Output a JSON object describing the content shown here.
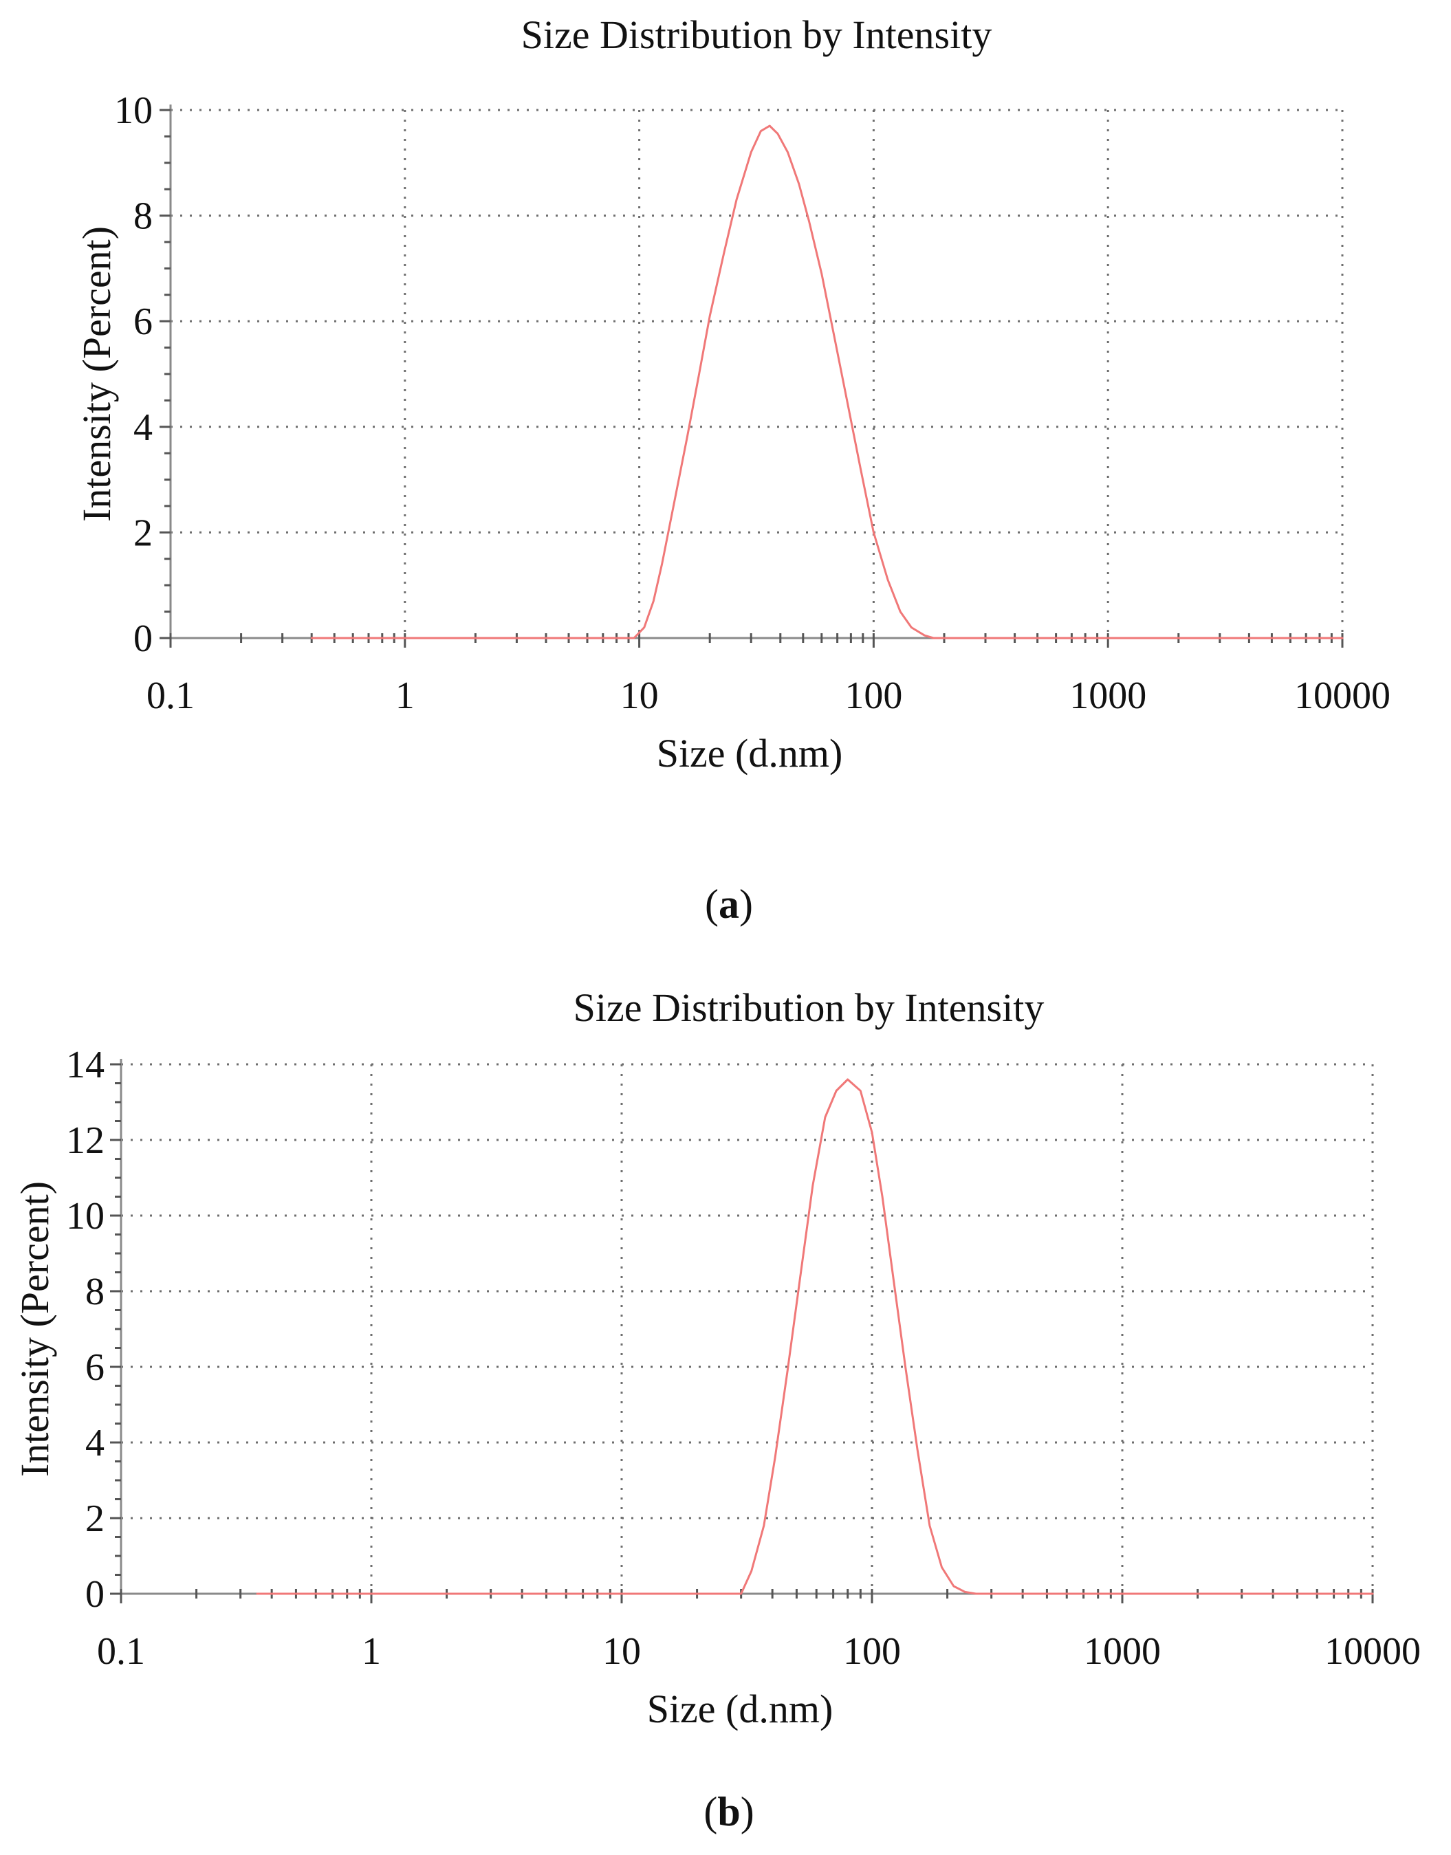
{
  "chart_data": [
    {
      "type": "line",
      "panel_label": "a",
      "title": "Size Distribution by Intensity",
      "xlabel": "Size (d.nm)",
      "ylabel": "Intensity (Percent)",
      "x_scale": "log",
      "xlim": [
        0.1,
        10000
      ],
      "ylim": [
        0,
        10
      ],
      "x_ticks": [
        "0.1",
        "1",
        "10",
        "100",
        "1000",
        "10000"
      ],
      "y_ticks": [
        "0",
        "2",
        "4",
        "6",
        "8",
        "10"
      ],
      "grid": true,
      "color": "#f07878",
      "series": [
        {
          "x": [
            0.4,
            9.5,
            10.5,
            11.5,
            12.5,
            14,
            16,
            18,
            20,
            23,
            26,
            30,
            33,
            36,
            39,
            43,
            48,
            53,
            60,
            68,
            77,
            88,
            100,
            115,
            130,
            145,
            165,
            180,
            10000
          ],
          "y": [
            0,
            0,
            0.2,
            0.7,
            1.4,
            2.5,
            3.8,
            5.0,
            6.1,
            7.3,
            8.3,
            9.2,
            9.6,
            9.7,
            9.55,
            9.2,
            8.6,
            7.9,
            6.9,
            5.7,
            4.5,
            3.2,
            2.0,
            1.1,
            0.5,
            0.2,
            0.05,
            0,
            0
          ]
        }
      ]
    },
    {
      "type": "line",
      "panel_label": "b",
      "title": "Size Distribution by Intensity",
      "xlabel": "Size (d.nm)",
      "ylabel": "Intensity (Percent)",
      "x_scale": "log",
      "xlim": [
        0.1,
        10000
      ],
      "ylim": [
        0,
        14
      ],
      "x_ticks": [
        "0.1",
        "1",
        "10",
        "100",
        "1000",
        "10000"
      ],
      "y_ticks": [
        "0",
        "2",
        "4",
        "6",
        "8",
        "10",
        "12",
        "14"
      ],
      "grid": true,
      "color": "#f07878",
      "series": [
        {
          "x": [
            0.35,
            30,
            33,
            37,
            41,
            46,
            52,
            58,
            65,
            72,
            80,
            90,
            100,
            110,
            122,
            136,
            152,
            170,
            190,
            212,
            235,
            260,
            10000
          ],
          "y": [
            0,
            0,
            0.6,
            1.8,
            3.6,
            5.9,
            8.5,
            10.8,
            12.6,
            13.3,
            13.6,
            13.3,
            12.2,
            10.5,
            8.3,
            6.0,
            3.8,
            1.8,
            0.7,
            0.2,
            0.05,
            0,
            0
          ]
        }
      ]
    }
  ]
}
